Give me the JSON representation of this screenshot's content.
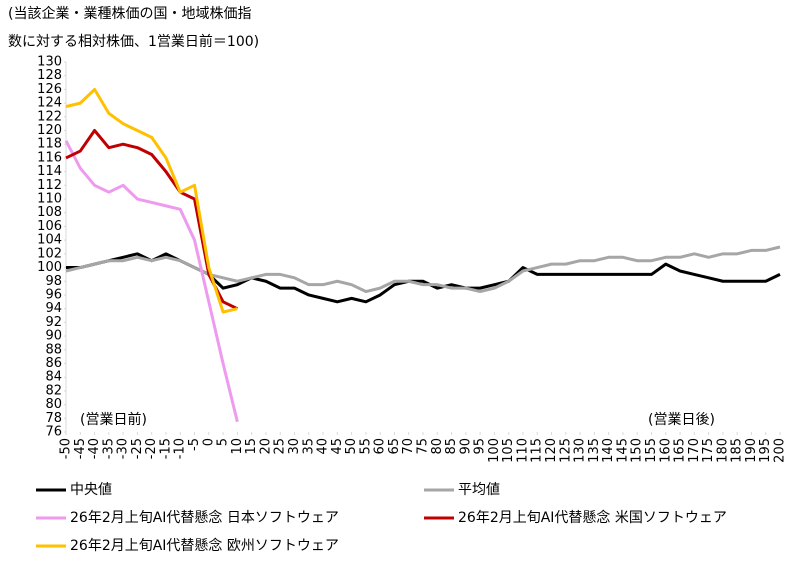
{
  "chart_data": {
    "type": "line",
    "title": [
      "(当該企業・業種株価の国・地域株価指",
      "数に対する相対株価、1営業日前＝100)"
    ],
    "annotations": [
      "(営業日前)",
      "(営業日後)"
    ],
    "x": [
      -50,
      -45,
      -40,
      -35,
      -30,
      -25,
      -20,
      -15,
      -10,
      -5,
      0,
      5,
      10,
      15,
      20,
      25,
      30,
      35,
      40,
      45,
      50,
      55,
      60,
      65,
      70,
      75,
      80,
      85,
      90,
      95,
      100,
      105,
      110,
      115,
      120,
      125,
      130,
      135,
      140,
      145,
      150,
      155,
      160,
      165,
      170,
      175,
      180,
      185,
      190,
      195,
      200
    ],
    "xlim": [
      -50,
      200
    ],
    "xticks": [
      -50,
      -45,
      -40,
      -35,
      -30,
      -25,
      -20,
      -15,
      -10,
      -5,
      0,
      5,
      10,
      15,
      20,
      25,
      30,
      35,
      40,
      45,
      50,
      55,
      60,
      65,
      70,
      75,
      80,
      85,
      90,
      95,
      100,
      105,
      110,
      115,
      120,
      125,
      130,
      135,
      140,
      145,
      150,
      155,
      160,
      165,
      170,
      175,
      180,
      185,
      190,
      195,
      200
    ],
    "ylim": [
      76,
      130
    ],
    "yticks": [
      76,
      78,
      80,
      82,
      84,
      86,
      88,
      90,
      92,
      94,
      96,
      98,
      100,
      102,
      104,
      106,
      108,
      110,
      112,
      114,
      116,
      118,
      120,
      122,
      124,
      126,
      128,
      130
    ],
    "grid": false,
    "series": [
      {
        "name": "中央値",
        "color": "#000000",
        "values": [
          100,
          100,
          100.5,
          101,
          101.5,
          102,
          101,
          102,
          101,
          100,
          99,
          97,
          97.5,
          98.5,
          98,
          97,
          97,
          96,
          95.5,
          95,
          95.5,
          95,
          96,
          97.5,
          98,
          98,
          97,
          97.5,
          97,
          97,
          97.5,
          98,
          100,
          99,
          99,
          99,
          99,
          99,
          99,
          99,
          99,
          99,
          100.5,
          99.5,
          99,
          98.5,
          98,
          98,
          98,
          98,
          99
        ]
      },
      {
        "name": "平均値",
        "color": "#a6a6a6",
        "values": [
          99.5,
          100,
          100.5,
          101,
          101,
          101.5,
          101,
          101.5,
          101,
          100,
          99,
          98.5,
          98,
          98.5,
          99,
          99,
          98.5,
          97.5,
          97.5,
          98,
          97.5,
          96.5,
          97,
          98,
          98,
          97.5,
          97.5,
          97,
          97,
          96.5,
          97,
          98,
          99.5,
          100,
          100.5,
          100.5,
          101,
          101,
          101.5,
          101.5,
          101,
          101,
          101.5,
          101.5,
          102,
          101.5,
          102,
          102,
          102.5,
          102.5,
          103
        ]
      },
      {
        "name": "26年2月上旬AI代替懸念 日本ソフトウェア",
        "color": "#ee9aee",
        "values": [
          118.5,
          114.5,
          112,
          111,
          112,
          110,
          109.5,
          109,
          108.5,
          104,
          95,
          86,
          77.5,
          null,
          null,
          null,
          null,
          null,
          null,
          null,
          null,
          null,
          null,
          null,
          null,
          null,
          null,
          null,
          null,
          null,
          null,
          null,
          null,
          null,
          null,
          null,
          null,
          null,
          null,
          null,
          null,
          null,
          null,
          null,
          null,
          null,
          null,
          null,
          null,
          null,
          null
        ]
      },
      {
        "name": "26年2月上旬AI代替懸念 米国ソフトウェア",
        "color": "#c00000",
        "values": [
          116,
          117,
          120,
          117.5,
          118,
          117.5,
          116.5,
          114,
          111,
          110,
          99,
          95,
          94,
          null,
          null,
          null,
          null,
          null,
          null,
          null,
          null,
          null,
          null,
          null,
          null,
          null,
          null,
          null,
          null,
          null,
          null,
          null,
          null,
          null,
          null,
          null,
          null,
          null,
          null,
          null,
          null,
          null,
          null,
          null,
          null,
          null,
          null,
          null,
          null,
          null,
          null
        ]
      },
      {
        "name": "26年2月上旬AI代替懸念 欧州ソフトウェア",
        "color": "#ffc000",
        "values": [
          123.5,
          124,
          126,
          122.5,
          121,
          120,
          119,
          116,
          111,
          112,
          100,
          93.5,
          94,
          null,
          null,
          null,
          null,
          null,
          null,
          null,
          null,
          null,
          null,
          null,
          null,
          null,
          null,
          null,
          null,
          null,
          null,
          null,
          null,
          null,
          null,
          null,
          null,
          null,
          null,
          null,
          null,
          null,
          null,
          null,
          null,
          null,
          null,
          null,
          null,
          null,
          null
        ]
      }
    ]
  }
}
